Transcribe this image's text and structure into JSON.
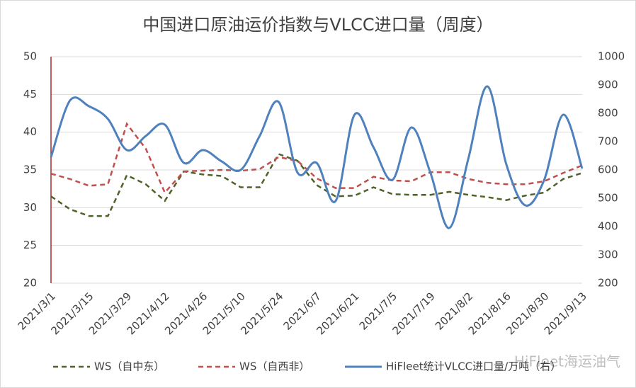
{
  "chart_data": {
    "type": "line",
    "title": "中国进口原油运价指数与VLCC进口量（周度）",
    "watermark": "HiFleet海运油气",
    "categories": [
      "2021/3/1",
      null,
      "2021/3/15",
      null,
      "2021/3/29",
      null,
      "2021/4/12",
      null,
      "2021/4/26",
      null,
      "2021/5/10",
      null,
      "2021/5/24",
      null,
      "2021/6/7",
      null,
      "2021/6/21",
      null,
      "2021/7/5",
      null,
      "2021/7/19",
      null,
      "2021/8/2",
      null,
      "2021/8/16",
      null,
      "2021/8/30",
      null,
      "2021/9/13"
    ],
    "ylim": [
      20,
      50
    ],
    "yticks": [
      20,
      25,
      30,
      35,
      40,
      45,
      50
    ],
    "y2lim": [
      200,
      1000
    ],
    "y2ticks": [
      200,
      300,
      400,
      500,
      600,
      700,
      800,
      900,
      1000
    ],
    "grid": true,
    "legend": "bottom",
    "series": [
      {
        "name": "WS（自中东）",
        "color": "#4f6228",
        "dashed": true,
        "smooth": false,
        "values": [
          31.5,
          29.8,
          28.9,
          28.9,
          34.3,
          33.1,
          30.9,
          34.8,
          34.4,
          34.2,
          32.7,
          32.7,
          37.1,
          36.2,
          33.0,
          31.5,
          31.6,
          32.7,
          31.8,
          31.7,
          31.7,
          32.1,
          31.7,
          31.4,
          31.0,
          31.6,
          32.0,
          33.8,
          34.6
        ]
      },
      {
        "name": "WS（自西非）",
        "color": "#c0504d",
        "dashed": true,
        "smooth": false,
        "values": [
          34.5,
          33.8,
          32.9,
          33.1,
          41.1,
          37.8,
          32.0,
          34.8,
          34.9,
          35.0,
          34.9,
          35.1,
          36.7,
          36.2,
          33.9,
          32.6,
          32.6,
          34.1,
          33.6,
          33.5,
          34.7,
          34.7,
          33.8,
          33.3,
          33.1,
          33.1,
          33.5,
          34.6,
          35.6
        ]
      },
      {
        "name": "HiFleet统计VLCC进口量/万吨（右）",
        "color": "#4f81bd",
        "dashed": false,
        "smooth": true,
        "axis": "y2",
        "values": [
          645,
          845,
          825,
          780,
          670,
          720,
          760,
          625,
          670,
          630,
          600,
          720,
          840,
          590,
          625,
          490,
          795,
          680,
          565,
          750,
          590,
          395,
          640,
          895,
          620,
          475,
          565,
          795,
          605
        ]
      }
    ]
  }
}
